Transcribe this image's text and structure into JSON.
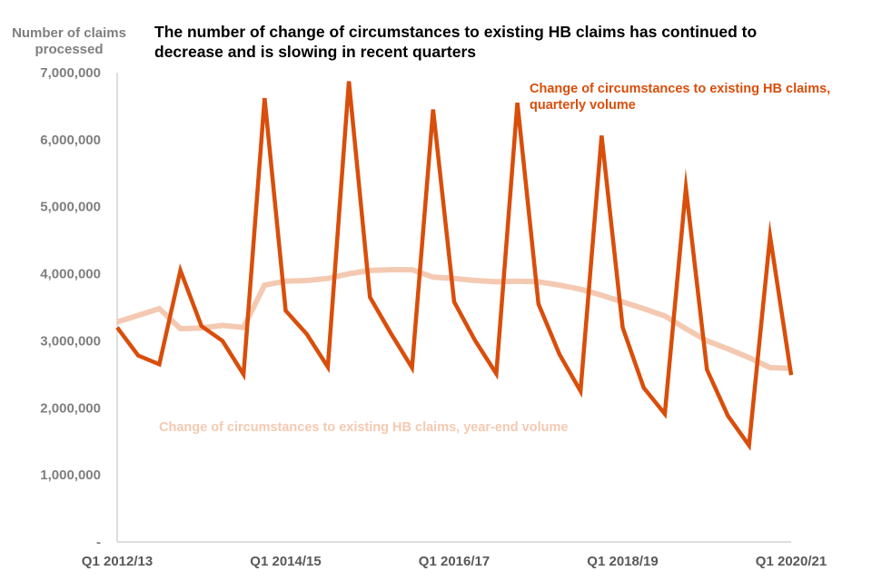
{
  "chart_data": {
    "type": "line",
    "title": "The number of change of circumstances to existing HB claims has continued to decrease and is slowing in recent quarters",
    "ylabel": "Number of claims processed",
    "xlabel": "",
    "ylim": [
      0,
      7000000
    ],
    "y_ticks": [
      {
        "value": 0,
        "label": "-"
      },
      {
        "value": 1000000,
        "label": "1,000,000"
      },
      {
        "value": 2000000,
        "label": "2,000,000"
      },
      {
        "value": 3000000,
        "label": "3,000,000"
      },
      {
        "value": 4000000,
        "label": "4,000,000"
      },
      {
        "value": 5000000,
        "label": "5,000,000"
      },
      {
        "value": 6000000,
        "label": "6,000,000"
      },
      {
        "value": 7000000,
        "label": "7,000,000"
      }
    ],
    "x_tick_labels": [
      {
        "index": 0,
        "label": "Q1 2012/13"
      },
      {
        "index": 8,
        "label": "Q1 2014/15"
      },
      {
        "index": 16,
        "label": "Q1 2016/17"
      },
      {
        "index": 24,
        "label": "Q1 2018/19"
      },
      {
        "index": 32,
        "label": "Q1 2020/21"
      }
    ],
    "grid": false,
    "series": [
      {
        "name": "Change of circumstances to existing HB claims, quarterly volume",
        "color": "#d94e0b",
        "values": [
          3200000,
          2780000,
          2650000,
          4050000,
          3220000,
          3000000,
          2500000,
          6620000,
          3450000,
          3100000,
          2610000,
          6870000,
          3650000,
          3110000,
          2600000,
          6450000,
          3580000,
          3000000,
          2510000,
          6550000,
          3550000,
          2800000,
          2250000,
          6060000,
          3200000,
          2300000,
          1910000,
          5280000,
          2570000,
          1880000,
          1440000,
          4560000,
          2490000
        ]
      },
      {
        "name": "Change of circumstances to existing HB claims, year-end volume",
        "color": "#f4c9b2",
        "values": [
          3280000,
          3380000,
          3480000,
          3180000,
          3190000,
          3230000,
          3200000,
          3830000,
          3890000,
          3900000,
          3930000,
          4000000,
          4050000,
          4060000,
          4060000,
          3950000,
          3930000,
          3900000,
          3880000,
          3890000,
          3880000,
          3830000,
          3770000,
          3680000,
          3580000,
          3480000,
          3370000,
          3180000,
          3000000,
          2880000,
          2750000,
          2600000,
          2590000
        ]
      }
    ],
    "legend": {
      "quarterly": "Change of circumstances to existing HB claims, quarterly volume",
      "year_end": "Change of circumstances to existing HB claims, year-end volume"
    }
  }
}
